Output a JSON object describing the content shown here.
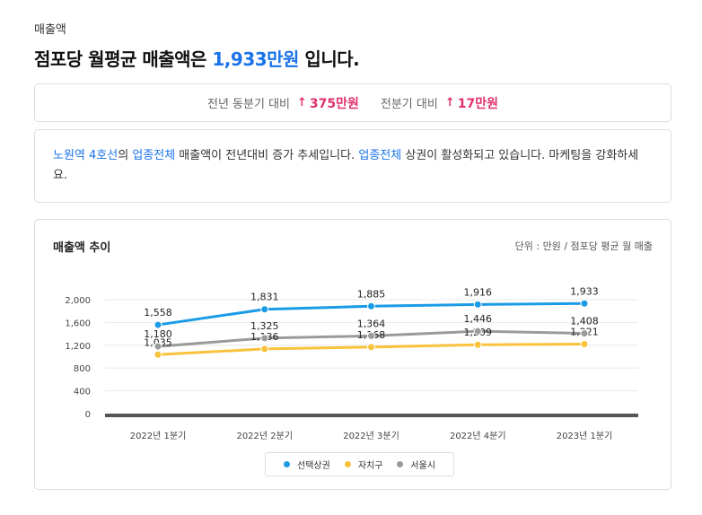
{
  "section_label": "매출액",
  "headline": {
    "prefix": "점포당 월평균 매출액은 ",
    "value": "1,933만원",
    "suffix": " 입니다."
  },
  "compare": [
    {
      "label": "전년 동분기 대비",
      "arrow": "↑",
      "value": "375만원"
    },
    {
      "label": "전분기 대비",
      "arrow": "↑",
      "value": "17만원"
    }
  ],
  "message": {
    "area": "노원역 4호선",
    "part1": "의 ",
    "industry": "업종전체",
    "part2": " 매출액이 전년대비 증가 추세입니다. ",
    "industry2": "업종전체",
    "part3": " 상권이 활성화되고 있습니다. 마케팅을 강화하세요."
  },
  "chart_title": "매출액 추이",
  "chart_unit": "단위 : 만원 / 점포당 평균 월 매출",
  "colors": {
    "accent_blue": "#1a73e8",
    "up_red": "#e0306a",
    "series1": "#1a9be6",
    "series2": "#f9c23c",
    "series3": "#9a9a9a"
  },
  "chart_data": {
    "type": "line",
    "categories": [
      "2022년 1분기",
      "2022년 2분기",
      "2022년 3분기",
      "2022년 4분기",
      "2023년 1분기"
    ],
    "series": [
      {
        "name": "선택상권",
        "color": "#1a9be6",
        "values": [
          1558,
          1831,
          1885,
          1916,
          1933
        ],
        "labels": [
          "1,558",
          "1,831",
          "1,885",
          "1,916",
          "1,933"
        ]
      },
      {
        "name": "자치구",
        "color": "#f9c23c",
        "values": [
          1035,
          1136,
          1168,
          1209,
          1221
        ],
        "labels": [
          "1,035",
          "1,136",
          "1,168",
          "1,209",
          "1,221"
        ]
      },
      {
        "name": "서울시",
        "color": "#9a9a9a",
        "values": [
          1180,
          1325,
          1364,
          1446,
          1408
        ],
        "labels": [
          "1,180",
          "1,325",
          "1,364",
          "1,446",
          "1,408"
        ]
      }
    ],
    "yticks": [
      0,
      400,
      800,
      1200,
      1600,
      2000
    ],
    "ytick_labels": [
      "0",
      "400",
      "800",
      "1,200",
      "1,600",
      "2,000"
    ],
    "ylim": [
      0,
      2000
    ],
    "grid": true,
    "legend": "bottom"
  }
}
